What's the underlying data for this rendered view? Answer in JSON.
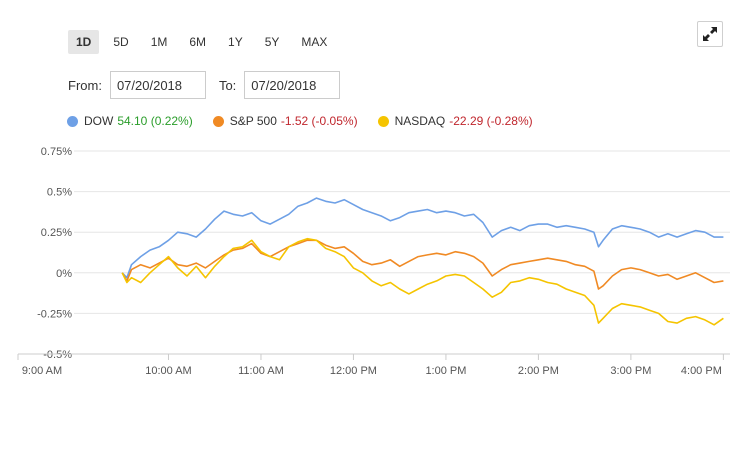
{
  "ranges": [
    "1D",
    "5D",
    "1M",
    "6M",
    "1Y",
    "5Y",
    "MAX"
  ],
  "active_range": "1D",
  "date_filter": {
    "from_label": "From:",
    "from_value": "07/20/2018",
    "to_label": "To:",
    "to_value": "07/20/2018"
  },
  "legend": [
    {
      "name": "DOW",
      "change": "54.10 (0.22%)",
      "direction": "up",
      "color": "#6ea0e6"
    },
    {
      "name": "S&P 500",
      "change": "-1.52 (-0.05%)",
      "direction": "down",
      "color": "#f08a24"
    },
    {
      "name": "NASDAQ",
      "change": "-22.29 (-0.28%)",
      "direction": "down",
      "color": "#f5c400"
    }
  ],
  "icons": {
    "expand": "expand-arrows-icon"
  },
  "chart_data": {
    "type": "line",
    "x_ticks": [
      "9:00 AM",
      "10:00 AM",
      "11:00 AM",
      "12:00 PM",
      "1:00 PM",
      "2:00 PM",
      "3:00 PM",
      "4:00 PM"
    ],
    "y_ticks": [
      "0.75%",
      "0.5%",
      "0.25%",
      "0%",
      "-0.25%",
      "-0.5%"
    ],
    "ylim": [
      -0.5,
      0.75
    ],
    "xlim_hours": [
      9,
      16.05
    ],
    "grid": "horizontal",
    "series": [
      {
        "name": "DOW",
        "color": "#6ea0e6",
        "points": [
          [
            9.5,
            0.0
          ],
          [
            9.55,
            -0.03
          ],
          [
            9.6,
            0.05
          ],
          [
            9.7,
            0.1
          ],
          [
            9.8,
            0.14
          ],
          [
            9.9,
            0.16
          ],
          [
            10.0,
            0.2
          ],
          [
            10.1,
            0.25
          ],
          [
            10.2,
            0.24
          ],
          [
            10.3,
            0.22
          ],
          [
            10.4,
            0.27
          ],
          [
            10.5,
            0.33
          ],
          [
            10.6,
            0.38
          ],
          [
            10.7,
            0.36
          ],
          [
            10.8,
            0.35
          ],
          [
            10.9,
            0.37
          ],
          [
            11.0,
            0.32
          ],
          [
            11.1,
            0.3
          ],
          [
            11.2,
            0.33
          ],
          [
            11.3,
            0.36
          ],
          [
            11.4,
            0.41
          ],
          [
            11.5,
            0.43
          ],
          [
            11.6,
            0.46
          ],
          [
            11.7,
            0.44
          ],
          [
            11.8,
            0.43
          ],
          [
            11.9,
            0.45
          ],
          [
            12.0,
            0.42
          ],
          [
            12.1,
            0.39
          ],
          [
            12.2,
            0.37
          ],
          [
            12.3,
            0.35
          ],
          [
            12.4,
            0.32
          ],
          [
            12.5,
            0.34
          ],
          [
            12.6,
            0.37
          ],
          [
            12.7,
            0.38
          ],
          [
            12.8,
            0.39
          ],
          [
            12.9,
            0.37
          ],
          [
            13.0,
            0.38
          ],
          [
            13.1,
            0.37
          ],
          [
            13.2,
            0.35
          ],
          [
            13.3,
            0.36
          ],
          [
            13.4,
            0.31
          ],
          [
            13.5,
            0.22
          ],
          [
            13.6,
            0.26
          ],
          [
            13.7,
            0.28
          ],
          [
            13.8,
            0.26
          ],
          [
            13.9,
            0.29
          ],
          [
            14.0,
            0.3
          ],
          [
            14.1,
            0.3
          ],
          [
            14.2,
            0.28
          ],
          [
            14.3,
            0.29
          ],
          [
            14.4,
            0.28
          ],
          [
            14.5,
            0.27
          ],
          [
            14.6,
            0.25
          ],
          [
            14.65,
            0.16
          ],
          [
            14.7,
            0.2
          ],
          [
            14.8,
            0.27
          ],
          [
            14.9,
            0.29
          ],
          [
            15.0,
            0.28
          ],
          [
            15.1,
            0.27
          ],
          [
            15.2,
            0.25
          ],
          [
            15.3,
            0.22
          ],
          [
            15.4,
            0.24
          ],
          [
            15.5,
            0.22
          ],
          [
            15.6,
            0.24
          ],
          [
            15.7,
            0.26
          ],
          [
            15.8,
            0.25
          ],
          [
            15.9,
            0.22
          ],
          [
            16.0,
            0.22
          ]
        ]
      },
      {
        "name": "S&P 500",
        "color": "#f08a24",
        "points": [
          [
            9.5,
            0.0
          ],
          [
            9.55,
            -0.05
          ],
          [
            9.6,
            0.02
          ],
          [
            9.7,
            0.05
          ],
          [
            9.8,
            0.03
          ],
          [
            9.9,
            0.06
          ],
          [
            10.0,
            0.09
          ],
          [
            10.1,
            0.05
          ],
          [
            10.2,
            0.04
          ],
          [
            10.3,
            0.06
          ],
          [
            10.4,
            0.03
          ],
          [
            10.5,
            0.07
          ],
          [
            10.6,
            0.11
          ],
          [
            10.7,
            0.14
          ],
          [
            10.8,
            0.15
          ],
          [
            10.9,
            0.18
          ],
          [
            11.0,
            0.12
          ],
          [
            11.1,
            0.1
          ],
          [
            11.2,
            0.13
          ],
          [
            11.3,
            0.16
          ],
          [
            11.4,
            0.18
          ],
          [
            11.5,
            0.2
          ],
          [
            11.6,
            0.2
          ],
          [
            11.7,
            0.17
          ],
          [
            11.8,
            0.15
          ],
          [
            11.9,
            0.16
          ],
          [
            12.0,
            0.12
          ],
          [
            12.1,
            0.07
          ],
          [
            12.2,
            0.05
          ],
          [
            12.3,
            0.06
          ],
          [
            12.4,
            0.08
          ],
          [
            12.5,
            0.04
          ],
          [
            12.6,
            0.07
          ],
          [
            12.7,
            0.1
          ],
          [
            12.8,
            0.11
          ],
          [
            12.9,
            0.12
          ],
          [
            13.0,
            0.11
          ],
          [
            13.1,
            0.13
          ],
          [
            13.2,
            0.12
          ],
          [
            13.3,
            0.1
          ],
          [
            13.4,
            0.06
          ],
          [
            13.5,
            -0.02
          ],
          [
            13.6,
            0.02
          ],
          [
            13.7,
            0.05
          ],
          [
            13.8,
            0.06
          ],
          [
            13.9,
            0.07
          ],
          [
            14.0,
            0.08
          ],
          [
            14.1,
            0.09
          ],
          [
            14.2,
            0.08
          ],
          [
            14.3,
            0.07
          ],
          [
            14.4,
            0.05
          ],
          [
            14.5,
            0.04
          ],
          [
            14.6,
            0.01
          ],
          [
            14.65,
            -0.1
          ],
          [
            14.7,
            -0.08
          ],
          [
            14.8,
            -0.02
          ],
          [
            14.9,
            0.02
          ],
          [
            15.0,
            0.03
          ],
          [
            15.1,
            0.02
          ],
          [
            15.2,
            0.0
          ],
          [
            15.3,
            -0.02
          ],
          [
            15.4,
            -0.01
          ],
          [
            15.5,
            -0.04
          ],
          [
            15.6,
            -0.02
          ],
          [
            15.7,
            0.0
          ],
          [
            15.8,
            -0.03
          ],
          [
            15.9,
            -0.06
          ],
          [
            16.0,
            -0.05
          ]
        ]
      },
      {
        "name": "NASDAQ",
        "color": "#f5c400",
        "points": [
          [
            9.5,
            0.0
          ],
          [
            9.55,
            -0.06
          ],
          [
            9.6,
            -0.03
          ],
          [
            9.7,
            -0.06
          ],
          [
            9.8,
            0.0
          ],
          [
            9.9,
            0.05
          ],
          [
            10.0,
            0.1
          ],
          [
            10.1,
            0.03
          ],
          [
            10.2,
            -0.02
          ],
          [
            10.3,
            0.04
          ],
          [
            10.4,
            -0.03
          ],
          [
            10.5,
            0.04
          ],
          [
            10.6,
            0.1
          ],
          [
            10.7,
            0.15
          ],
          [
            10.8,
            0.16
          ],
          [
            10.9,
            0.2
          ],
          [
            11.0,
            0.13
          ],
          [
            11.1,
            0.1
          ],
          [
            11.2,
            0.08
          ],
          [
            11.3,
            0.16
          ],
          [
            11.4,
            0.19
          ],
          [
            11.5,
            0.21
          ],
          [
            11.6,
            0.2
          ],
          [
            11.7,
            0.15
          ],
          [
            11.8,
            0.13
          ],
          [
            11.9,
            0.1
          ],
          [
            12.0,
            0.03
          ],
          [
            12.1,
            0.0
          ],
          [
            12.2,
            -0.05
          ],
          [
            12.3,
            -0.08
          ],
          [
            12.4,
            -0.06
          ],
          [
            12.5,
            -0.1
          ],
          [
            12.6,
            -0.13
          ],
          [
            12.7,
            -0.1
          ],
          [
            12.8,
            -0.07
          ],
          [
            12.9,
            -0.05
          ],
          [
            13.0,
            -0.02
          ],
          [
            13.1,
            -0.01
          ],
          [
            13.2,
            -0.02
          ],
          [
            13.3,
            -0.06
          ],
          [
            13.4,
            -0.1
          ],
          [
            13.5,
            -0.15
          ],
          [
            13.6,
            -0.12
          ],
          [
            13.7,
            -0.06
          ],
          [
            13.8,
            -0.05
          ],
          [
            13.9,
            -0.03
          ],
          [
            14.0,
            -0.04
          ],
          [
            14.1,
            -0.06
          ],
          [
            14.2,
            -0.07
          ],
          [
            14.3,
            -0.1
          ],
          [
            14.4,
            -0.12
          ],
          [
            14.5,
            -0.14
          ],
          [
            14.6,
            -0.2
          ],
          [
            14.65,
            -0.31
          ],
          [
            14.7,
            -0.28
          ],
          [
            14.8,
            -0.22
          ],
          [
            14.9,
            -0.19
          ],
          [
            15.0,
            -0.2
          ],
          [
            15.1,
            -0.21
          ],
          [
            15.2,
            -0.23
          ],
          [
            15.3,
            -0.25
          ],
          [
            15.4,
            -0.3
          ],
          [
            15.5,
            -0.31
          ],
          [
            15.6,
            -0.28
          ],
          [
            15.7,
            -0.27
          ],
          [
            15.8,
            -0.29
          ],
          [
            15.9,
            -0.32
          ],
          [
            16.0,
            -0.28
          ]
        ]
      }
    ]
  }
}
